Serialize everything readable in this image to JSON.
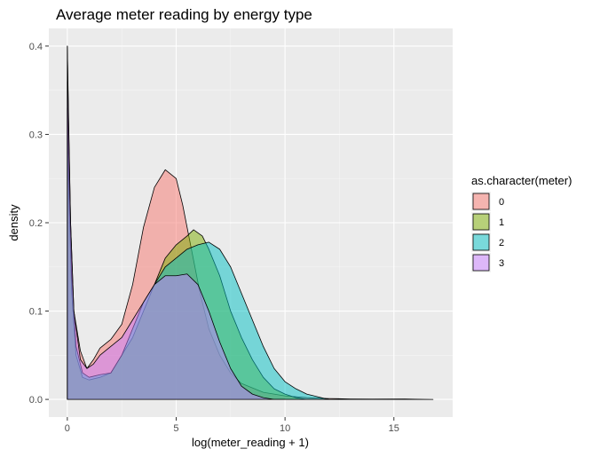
{
  "chart_data": {
    "type": "area",
    "subtype": "density",
    "title": "Average meter reading by energy type",
    "xlabel": "log(meter_reading + 1)",
    "ylabel": "density",
    "xlim": [
      -0.85,
      17.7
    ],
    "ylim": [
      -0.02,
      0.42
    ],
    "x_ticks": [
      0,
      5,
      10,
      15
    ],
    "y_ticks": [
      0.0,
      0.1,
      0.2,
      0.3,
      0.4
    ],
    "x_tick_labels": [
      "0",
      "5",
      "10",
      "15"
    ],
    "y_tick_labels": [
      "0.0",
      "0.1",
      "0.2",
      "0.3",
      "0.4"
    ],
    "grid": true,
    "background": "#ebebeb",
    "legend": {
      "title": "as.character(meter)",
      "position": "right",
      "entries": [
        "0",
        "1",
        "2",
        "3"
      ]
    },
    "series": [
      {
        "name": "0",
        "color": "#F8766D",
        "points": [
          [
            0,
            0.4
          ],
          [
            0.05,
            0.33
          ],
          [
            0.15,
            0.2
          ],
          [
            0.3,
            0.1
          ],
          [
            0.6,
            0.055
          ],
          [
            0.9,
            0.035
          ],
          [
            1.2,
            0.045
          ],
          [
            1.5,
            0.058
          ],
          [
            2.0,
            0.068
          ],
          [
            2.5,
            0.085
          ],
          [
            3.0,
            0.13
          ],
          [
            3.5,
            0.195
          ],
          [
            4.0,
            0.24
          ],
          [
            4.5,
            0.26
          ],
          [
            5.0,
            0.25
          ],
          [
            5.3,
            0.22
          ],
          [
            5.7,
            0.17
          ],
          [
            6.1,
            0.12
          ],
          [
            6.5,
            0.08
          ],
          [
            7.0,
            0.05
          ],
          [
            7.5,
            0.03
          ],
          [
            8.0,
            0.018
          ],
          [
            9.0,
            0.008
          ],
          [
            10.0,
            0.004
          ],
          [
            11.0,
            0.002
          ],
          [
            12.0,
            0.001
          ],
          [
            13.0,
            0.0005
          ],
          [
            14.0,
            0.0003
          ],
          [
            15.5,
            0.0005
          ],
          [
            16.0,
            0.0002
          ],
          [
            16.8,
            0.0
          ]
        ]
      },
      {
        "name": "1",
        "color": "#7CAE00",
        "points": [
          [
            0,
            0.33
          ],
          [
            0.05,
            0.25
          ],
          [
            0.2,
            0.12
          ],
          [
            0.4,
            0.05
          ],
          [
            0.7,
            0.025
          ],
          [
            1.0,
            0.022
          ],
          [
            1.5,
            0.025
          ],
          [
            2.0,
            0.03
          ],
          [
            2.5,
            0.05
          ],
          [
            3.0,
            0.07
          ],
          [
            3.5,
            0.1
          ],
          [
            4.0,
            0.13
          ],
          [
            4.5,
            0.16
          ],
          [
            5.0,
            0.175
          ],
          [
            5.5,
            0.185
          ],
          [
            5.8,
            0.192
          ],
          [
            6.2,
            0.185
          ],
          [
            6.5,
            0.17
          ],
          [
            7.0,
            0.14
          ],
          [
            7.5,
            0.1
          ],
          [
            8.0,
            0.07
          ],
          [
            8.5,
            0.045
          ],
          [
            9.0,
            0.025
          ],
          [
            9.5,
            0.012
          ],
          [
            10.0,
            0.006
          ],
          [
            10.5,
            0.002
          ],
          [
            11.0,
            0.0
          ],
          [
            12.0,
            0.0
          ]
        ]
      },
      {
        "name": "2",
        "color": "#00BFC4",
        "points": [
          [
            0,
            0.36
          ],
          [
            0.05,
            0.28
          ],
          [
            0.2,
            0.14
          ],
          [
            0.4,
            0.06
          ],
          [
            0.7,
            0.03
          ],
          [
            1.0,
            0.025
          ],
          [
            1.5,
            0.028
          ],
          [
            2.0,
            0.03
          ],
          [
            2.5,
            0.05
          ],
          [
            3.0,
            0.08
          ],
          [
            3.5,
            0.11
          ],
          [
            4.0,
            0.13
          ],
          [
            4.5,
            0.15
          ],
          [
            5.0,
            0.16
          ],
          [
            5.5,
            0.17
          ],
          [
            6.0,
            0.175
          ],
          [
            6.5,
            0.178
          ],
          [
            7.0,
            0.17
          ],
          [
            7.5,
            0.15
          ],
          [
            8.0,
            0.12
          ],
          [
            8.5,
            0.09
          ],
          [
            9.0,
            0.06
          ],
          [
            9.5,
            0.035
          ],
          [
            10.0,
            0.02
          ],
          [
            10.5,
            0.012
          ],
          [
            11.0,
            0.006
          ],
          [
            11.5,
            0.003
          ],
          [
            12.0,
            0.0
          ]
        ]
      },
      {
        "name": "3",
        "color": "#C77CFF",
        "points": [
          [
            0,
            0.4
          ],
          [
            0.05,
            0.32
          ],
          [
            0.15,
            0.2
          ],
          [
            0.3,
            0.1
          ],
          [
            0.6,
            0.045
          ],
          [
            0.9,
            0.035
          ],
          [
            1.2,
            0.04
          ],
          [
            1.5,
            0.05
          ],
          [
            2.0,
            0.06
          ],
          [
            2.5,
            0.07
          ],
          [
            3.0,
            0.09
          ],
          [
            3.5,
            0.11
          ],
          [
            4.0,
            0.13
          ],
          [
            4.5,
            0.14
          ],
          [
            5.0,
            0.14
          ],
          [
            5.5,
            0.142
          ],
          [
            6.0,
            0.13
          ],
          [
            6.5,
            0.1
          ],
          [
            7.0,
            0.065
          ],
          [
            7.5,
            0.035
          ],
          [
            8.0,
            0.015
          ],
          [
            8.5,
            0.006
          ],
          [
            9.0,
            0.002
          ],
          [
            9.5,
            0.0
          ],
          [
            10.0,
            0.0
          ]
        ]
      }
    ]
  }
}
